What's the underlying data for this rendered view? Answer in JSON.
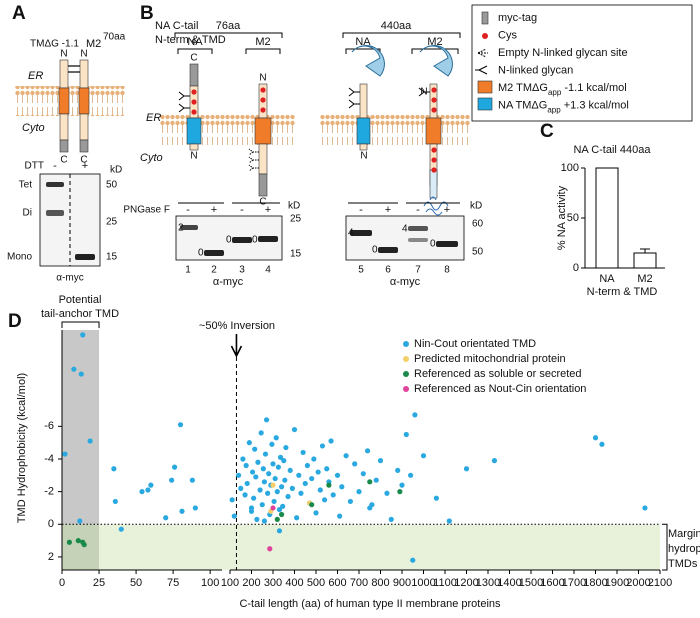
{
  "panel_a": {
    "letter": "A",
    "tm_label": "TMΔG -1.1",
    "protein": "M2",
    "superscript": "70aa",
    "n_labels": [
      "N",
      "N"
    ],
    "c_labels": [
      "C",
      "C"
    ],
    "er": "ER",
    "cyto": "Cyto",
    "dtt": "DTT",
    "dtt_lanes": [
      "-",
      "+"
    ],
    "kd": "kD",
    "markers": [
      "50",
      "25",
      "15"
    ],
    "bands": [
      "Tet",
      "Di",
      "Mono"
    ],
    "antibody": "α-myc"
  },
  "panel_b": {
    "letter": "B",
    "ctail_label": "NA C-tail",
    "ctail_lengths": [
      "76aa",
      "440aa"
    ],
    "nterm_label": "N-term & TMD",
    "constructs": [
      "NA",
      "M2",
      "NA",
      "M2"
    ],
    "termini": [
      "C",
      "N",
      "N",
      "C",
      "N",
      "N"
    ],
    "er": "ER",
    "cyto": "Cyto",
    "pngase": "PNGase F",
    "lane_signs": [
      "-",
      "+",
      "-",
      "+",
      "-",
      "+",
      "-",
      "+"
    ],
    "kd": [
      "kD",
      "kD"
    ],
    "markers_left": [
      "25",
      "15"
    ],
    "markers_right": [
      "60",
      "50"
    ],
    "band_labels": [
      "2",
      "0",
      "0",
      "0",
      "4",
      "0",
      "4",
      "0"
    ],
    "lanes": [
      "1",
      "2",
      "3",
      "4",
      "5",
      "6",
      "7",
      "8"
    ],
    "antibody": [
      "α-myc",
      "α-myc"
    ]
  },
  "legend": [
    [
      "myc-tag"
    ],
    [
      "Cys"
    ],
    [
      "Empty N-linked glycan site"
    ],
    [
      "N-linked glycan"
    ],
    [
      "M2 TMΔG",
      "app",
      " -1.1 kcal/mol"
    ],
    [
      "NA TMΔG",
      "app",
      " +1.3 kcal/mol"
    ]
  ],
  "panel_c": {
    "type": "bar",
    "letter": "C",
    "title": "NA C-tail 440aa",
    "ylabel": "% NA activity",
    "categories": [
      "NA",
      "M2"
    ],
    "xlabel": "N-term & TMD",
    "values": [
      100,
      15
    ],
    "errors": [
      0,
      4
    ],
    "ylim": [
      0,
      100
    ],
    "yticks": [
      0,
      50,
      100
    ],
    "color": "#ffffff"
  },
  "panel_d": {
    "type": "scatter",
    "letter": "D",
    "ylabel": "TMD Hydrophobicity (kcal/mol)",
    "xlabel": "C-tail length (aa) of human type II membrane proteins",
    "tail_anchor_label": [
      "Potential",
      "tail-anchor TMD"
    ],
    "tail_anchor_range": [
      0,
      25
    ],
    "inversion_label": "~50% Inversion",
    "inversion_x": 130,
    "marginal_label": [
      "Marginally",
      "hydrophobic",
      "TMDs"
    ],
    "zero_line": 0,
    "ylim": [
      -11.9,
      2.8
    ],
    "y_inverted": true,
    "yticks": [
      -6,
      -4,
      -2,
      0,
      2
    ],
    "x_segments": [
      {
        "xlim": [
          0,
          108
        ],
        "xticks": [
          0,
          25,
          50,
          75,
          100
        ]
      },
      {
        "xlim": [
          100,
          2100
        ],
        "xticks": [
          100,
          200,
          300,
          400,
          500,
          600,
          700,
          800,
          900,
          1000,
          1100,
          1200,
          1300,
          1400,
          1500,
          1600,
          1700,
          1800,
          1900,
          2000,
          2100
        ]
      }
    ],
    "series": [
      {
        "name": "Nin-Cout orientated TMD",
        "color": "#2aa9e0",
        "x": [
          2,
          8,
          13,
          14,
          19,
          35,
          36,
          54,
          58,
          74,
          76,
          80,
          81,
          88,
          40,
          70,
          12,
          60,
          90,
          110,
          120,
          140,
          150,
          160,
          170,
          175,
          180,
          190,
          200,
          205,
          210,
          215,
          220,
          225,
          230,
          240,
          245,
          250,
          255,
          260,
          265,
          270,
          275,
          280,
          285,
          290,
          295,
          300,
          305,
          310,
          315,
          320,
          325,
          330,
          335,
          340,
          345,
          350,
          355,
          360,
          370,
          380,
          390,
          400,
          410,
          420,
          430,
          440,
          450,
          460,
          470,
          480,
          490,
          500,
          510,
          520,
          530,
          540,
          550,
          560,
          570,
          580,
          600,
          610,
          620,
          640,
          660,
          680,
          700,
          720,
          740,
          760,
          780,
          800,
          830,
          850,
          880,
          900,
          920,
          940,
          960,
          1000,
          1060,
          1120,
          1200,
          1330,
          1800,
          1830,
          2030,
          950,
          750,
          330,
          260,
          200
        ],
        "y": [
          -4.3,
          -9.5,
          -9.2,
          -11.6,
          -5.1,
          -3.4,
          -1.4,
          -2.0,
          -2.1,
          -2.7,
          -3.5,
          -6.1,
          -0.8,
          -2.7,
          0.3,
          -0.4,
          -0.2,
          -2.4,
          -1.0,
          -1.5,
          -0.5,
          -3.0,
          -2.2,
          -4.0,
          -1.8,
          -3.6,
          -2.5,
          -5.0,
          -0.8,
          -3.2,
          -1.6,
          -4.6,
          -2.9,
          -0.3,
          -3.8,
          -2.1,
          -5.6,
          -1.2,
          -3.4,
          -2.6,
          -4.3,
          -6.4,
          -1.9,
          -3.1,
          -0.6,
          -2.4,
          -4.9,
          -3.7,
          -1.4,
          -2.8,
          -5.3,
          -2.0,
          -3.5,
          -0.9,
          -4.1,
          -2.3,
          -1.1,
          -3.9,
          -2.7,
          -4.7,
          -1.7,
          -3.3,
          -2.2,
          -5.8,
          -0.4,
          -3.0,
          -1.9,
          -4.4,
          -2.5,
          -3.6,
          -1.3,
          -2.8,
          -4.0,
          -0.7,
          -3.2,
          -2.1,
          -4.8,
          -1.5,
          -3.4,
          -2.6,
          -5.1,
          -1.8,
          -3.0,
          -0.5,
          -2.3,
          -4.2,
          -1.4,
          -3.7,
          -2.0,
          -3.1,
          -4.5,
          -1.2,
          -2.7,
          -3.9,
          -1.9,
          -0.3,
          -3.3,
          -2.4,
          -5.5,
          -3.0,
          -6.7,
          -4.2,
          -1.6,
          -0.2,
          -3.4,
          -3.9,
          -5.3,
          -4.9,
          -1.0,
          2.2,
          -1.0,
          0.4,
          -0.2,
          -1.0
        ]
      },
      {
        "name": "Predicted mitochondrial protein",
        "color": "#f5cf6a",
        "x": [
          300,
          470,
          290
        ],
        "y": [
          -2.4,
          -1.3,
          -0.8
        ]
      },
      {
        "name": "Referenced as soluble or secreted",
        "color": "#1a8a4a",
        "x": [
          5,
          11,
          14,
          15,
          340,
          480,
          560,
          750,
          890,
          320
        ],
        "y": [
          1.1,
          1.0,
          1.1,
          1.25,
          -0.6,
          -1.2,
          -2.4,
          -2.6,
          -2.0,
          -0.3
        ]
      },
      {
        "name": "Referenced as Nout-Cin orientation",
        "color": "#e0439a",
        "x": [
          300,
          285
        ],
        "y": [
          -1.0,
          1.5
        ]
      }
    ],
    "legend": "upper right"
  }
}
